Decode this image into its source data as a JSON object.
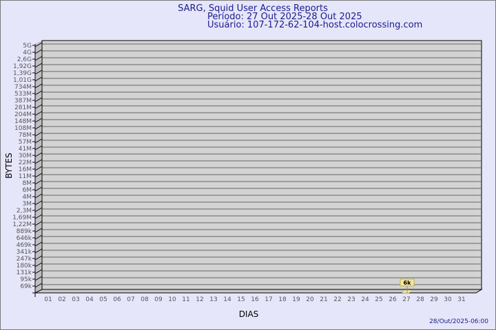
{
  "header": {
    "title": "SARG, Squid User Access Reports",
    "period": "Período: 27 Out 2025-28 Out 2025",
    "user": "Usuário: 107-172-62-104-host.colocrossing.com"
  },
  "footer": {
    "timestamp": "28/Out/2025-06:00"
  },
  "colors": {
    "background": "#e6e6fa",
    "plot": "#d3d3d3",
    "bar": "#f5e6a0",
    "title": "#1a1a8c"
  },
  "chart_data": {
    "type": "bar",
    "xlabel": "DIAS",
    "ylabel": "BYTES",
    "y_scale": "log",
    "y_tick_labels": [
      "5G",
      "4G",
      "2,6G",
      "1,92G",
      "1,39G",
      "1,01G",
      "734M",
      "533M",
      "387M",
      "281M",
      "204M",
      "148M",
      "108M",
      "78M",
      "57M",
      "41M",
      "30M",
      "22M",
      "16M",
      "11M",
      "8M",
      "6M",
      "4M",
      "3M",
      "2,3M",
      "1,69M",
      "1,22M",
      "889k",
      "646k",
      "469k",
      "341k",
      "247k",
      "180k",
      "131k",
      "95k",
      "69k"
    ],
    "categories": [
      "01",
      "02",
      "03",
      "04",
      "05",
      "06",
      "07",
      "08",
      "09",
      "10",
      "11",
      "12",
      "13",
      "14",
      "15",
      "16",
      "17",
      "18",
      "19",
      "20",
      "21",
      "22",
      "23",
      "24",
      "25",
      "26",
      "27",
      "28",
      "29",
      "30",
      "31"
    ],
    "values": [
      null,
      null,
      null,
      null,
      null,
      null,
      null,
      null,
      null,
      null,
      null,
      null,
      null,
      null,
      null,
      null,
      null,
      null,
      null,
      null,
      null,
      null,
      null,
      null,
      null,
      null,
      6000,
      null,
      null,
      null,
      null
    ],
    "data_labels": {
      "27": "6k"
    },
    "grid": true
  }
}
